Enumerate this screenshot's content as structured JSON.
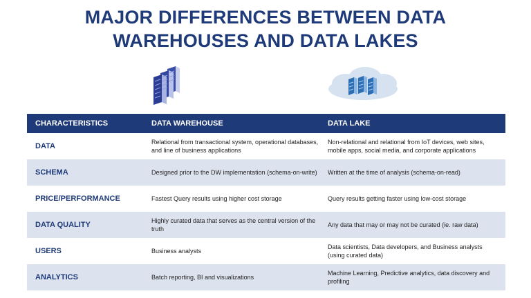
{
  "title": {
    "line1": "MAJOR DIFFERENCES BETWEEN DATA",
    "line2": "WAREHOUSES AND DATA LAKES"
  },
  "icons": {
    "warehouse": "server-rack-icon",
    "lake": "cloud-servers-icon"
  },
  "colors": {
    "header_bg": "#1f3a78",
    "title": "#1f3a78",
    "alt_row": "#dde3ee"
  },
  "table": {
    "headers": [
      "CHARACTERISTICS",
      "DATA WAREHOUSE",
      "DATA LAKE"
    ],
    "rows": [
      {
        "characteristic": "DATA",
        "warehouse": "Relational from transactional system, operational databases, and line of business applications",
        "lake": "Non-relational and relational from IoT devices, web sites, mobile apps, social media, and corporate applications"
      },
      {
        "characteristic": "SCHEMA",
        "warehouse": "Designed prior to the DW implementation (schema-on-write)",
        "lake": "Written at the time of analysis (schema-on-read)"
      },
      {
        "characteristic": "PRICE/PERFORMANCE",
        "warehouse": "Fastest Query results using higher cost storage",
        "lake": "Query results getting faster using low-cost storage"
      },
      {
        "characteristic": "DATA QUALITY",
        "warehouse": "Highly curated data that serves as the central version of the truth",
        "lake": "Any data that may or may not be curated (ie. raw data)"
      },
      {
        "characteristic": "USERS",
        "warehouse": "Business analysts",
        "lake": "Data scientists, Data developers, and Business analysts (using curated data)"
      },
      {
        "characteristic": "ANALYTICS",
        "warehouse": "Batch reporting, BI and visualizations",
        "lake": "Machine Learning, Predictive analytics, data discovery and profiling"
      }
    ]
  }
}
